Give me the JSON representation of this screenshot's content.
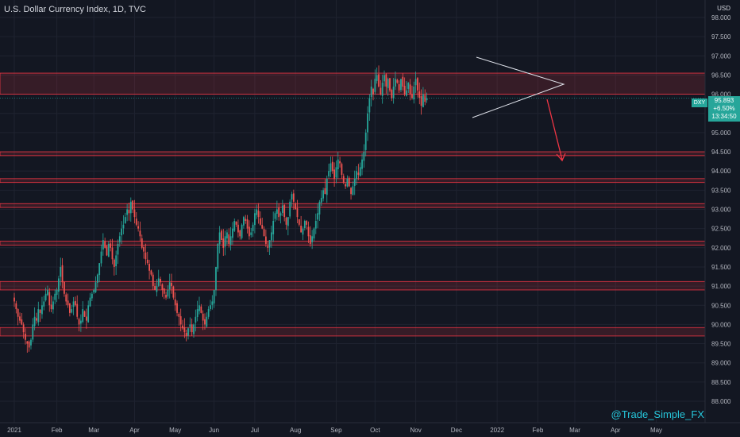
{
  "chart_data": {
    "type": "candlestick",
    "title": "U.S. Dollar Currency Index, 1D, TVC",
    "currency": "USD",
    "symbol": "DXY",
    "last_price": "95.893",
    "change": "+6.50%",
    "countdown": "13:34:50",
    "watermark": "@Trade_Simple_FX",
    "y_ticks": [
      "98.000",
      "97.500",
      "97.000",
      "96.500",
      "96.000",
      "95.500",
      "95.000",
      "94.500",
      "94.000",
      "93.500",
      "93.000",
      "92.500",
      "92.000",
      "91.500",
      "91.000",
      "90.500",
      "90.000",
      "89.500",
      "89.000",
      "88.500",
      "88.000"
    ],
    "ylim": [
      88.0,
      98.2
    ],
    "x_ticks": [
      {
        "label": "2021",
        "idx": 0
      },
      {
        "label": "Feb",
        "idx": 23
      },
      {
        "label": "Mar",
        "idx": 43
      },
      {
        "label": "Apr",
        "idx": 65
      },
      {
        "label": "May",
        "idx": 87
      },
      {
        "label": "Jun",
        "idx": 108
      },
      {
        "label": "Jul",
        "idx": 130
      },
      {
        "label": "Aug",
        "idx": 152
      },
      {
        "label": "Sep",
        "idx": 174
      },
      {
        "label": "Oct",
        "idx": 195
      },
      {
        "label": "Nov",
        "idx": 217
      },
      {
        "label": "Dec",
        "idx": 239
      },
      {
        "label": "2022",
        "idx": 261
      },
      {
        "label": "Feb",
        "idx": 283
      },
      {
        "label": "Mar",
        "idx": 303
      },
      {
        "label": "Apr",
        "idx": 325
      },
      {
        "label": "May",
        "idx": 347
      }
    ],
    "zones": [
      {
        "low": 96.0,
        "high": 96.55
      },
      {
        "low": 94.4,
        "high": 94.5
      },
      {
        "low": 93.7,
        "high": 93.8
      },
      {
        "low": 93.05,
        "high": 93.15
      },
      {
        "low": 92.07,
        "high": 92.17
      },
      {
        "low": 90.9,
        "high": 91.12
      },
      {
        "low": 89.7,
        "high": 89.92
      }
    ],
    "closes": [
      90.6,
      90.4,
      90.2,
      90.1,
      90.0,
      89.8,
      89.6,
      89.5,
      89.4,
      89.6,
      90.0,
      90.2,
      90.1,
      90.4,
      90.3,
      90.5,
      90.6,
      90.8,
      90.9,
      90.5,
      90.4,
      90.6,
      90.8,
      90.9,
      91.2,
      91.5,
      91.1,
      90.8,
      90.6,
      90.5,
      90.3,
      90.4,
      90.6,
      90.5,
      90.2,
      90.0,
      90.1,
      90.4,
      90.2,
      90.1,
      90.5,
      90.7,
      90.8,
      90.9,
      91.1,
      91.3,
      91.6,
      91.9,
      92.2,
      92.0,
      91.8,
      92.1,
      92.0,
      91.7,
      91.5,
      91.8,
      92.1,
      92.3,
      92.5,
      92.6,
      92.8,
      93.0,
      92.9,
      93.2,
      93.0,
      92.8,
      92.6,
      92.5,
      92.3,
      92.0,
      91.9,
      91.7,
      91.6,
      91.4,
      91.3,
      91.0,
      90.9,
      91.0,
      91.2,
      91.1,
      90.9,
      90.8,
      90.7,
      90.9,
      91.1,
      91.0,
      90.7,
      90.5,
      90.3,
      90.2,
      90.0,
      89.9,
      89.8,
      89.7,
      89.9,
      90.0,
      89.8,
      90.0,
      90.2,
      90.4,
      90.5,
      90.3,
      90.1,
      90.0,
      90.2,
      90.4,
      90.5,
      90.6,
      90.9,
      91.5,
      92.1,
      92.4,
      92.2,
      92.0,
      92.3,
      92.4,
      92.1,
      92.3,
      92.5,
      92.7,
      92.6,
      92.4,
      92.3,
      92.6,
      92.8,
      92.7,
      92.5,
      92.3,
      92.4,
      92.6,
      92.9,
      93.0,
      92.8,
      92.6,
      92.5,
      92.3,
      92.1,
      92.0,
      92.2,
      92.4,
      92.7,
      92.9,
      93.0,
      92.8,
      92.9,
      93.1,
      92.8,
      92.6,
      92.8,
      93.2,
      93.4,
      93.2,
      93.0,
      92.8,
      92.6,
      92.4,
      92.5,
      92.7,
      92.6,
      92.3,
      92.1,
      92.3,
      92.5,
      92.7,
      92.9,
      93.2,
      93.3,
      93.5,
      93.4,
      93.8,
      94.0,
      94.2,
      94.0,
      93.8,
      94.1,
      94.3,
      94.2,
      93.9,
      93.7,
      93.6,
      93.8,
      93.6,
      93.4,
      93.6,
      93.8,
      94.0,
      93.9,
      94.1,
      94.3,
      94.5,
      95.0,
      95.5,
      95.9,
      96.2,
      96.0,
      96.4,
      96.5,
      96.2,
      96.0,
      96.3,
      96.5,
      96.2,
      96.4,
      96.1,
      95.9,
      96.2,
      96.4,
      96.3,
      96.1,
      96.4,
      96.2,
      96.0,
      96.1,
      96.3,
      96.0,
      95.9,
      96.2,
      96.4,
      96.1,
      95.9,
      95.7,
      96.0,
      95.8,
      95.9
    ]
  }
}
